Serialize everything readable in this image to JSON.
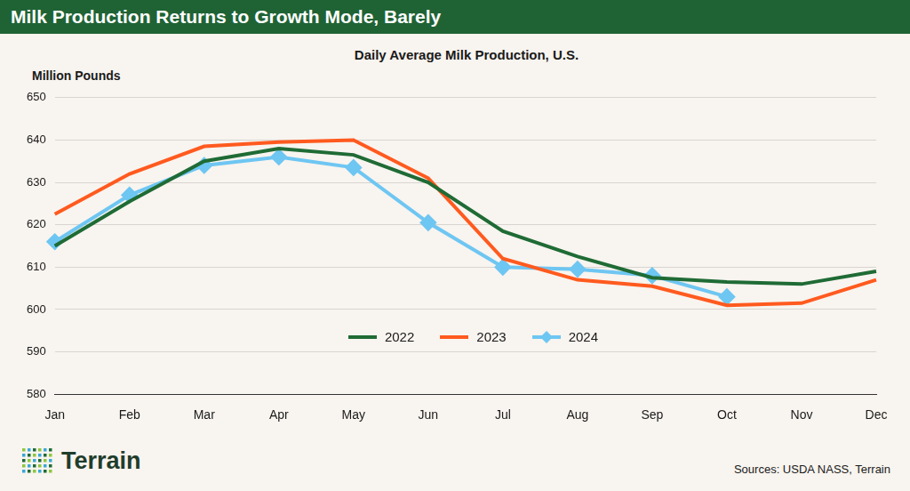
{
  "header": {
    "title": "Milk Production Returns to Growth Mode, Barely"
  },
  "chart_data": {
    "type": "line",
    "title": "Daily Average Milk Production, U.S.",
    "y_label": "Million Pounds",
    "categories": [
      "Jan",
      "Feb",
      "Mar",
      "Apr",
      "May",
      "Jun",
      "Jul",
      "Aug",
      "Sep",
      "Oct",
      "Nov",
      "Dec"
    ],
    "series": [
      {
        "name": "2022",
        "color": "#1f6b35",
        "marker": "none",
        "values": [
          615,
          625.5,
          635,
          638,
          636.5,
          630,
          618.5,
          612.5,
          607.5,
          606.5,
          606,
          609
        ]
      },
      {
        "name": "2023",
        "color": "#ff5a1f",
        "marker": "none",
        "values": [
          622.5,
          632,
          638.5,
          639.5,
          640,
          631,
          612,
          607,
          605.5,
          601,
          601.5,
          607
        ]
      },
      {
        "name": "2024",
        "color": "#6ec6f2",
        "marker": "diamond",
        "values": [
          616,
          627,
          634,
          636,
          633.5,
          620.5,
          610,
          609.5,
          608,
          603,
          null,
          null
        ]
      }
    ],
    "ylim": [
      580,
      650
    ],
    "yticks": [
      580,
      590,
      600,
      610,
      620,
      630,
      640,
      650
    ],
    "grid": true,
    "legend": "bottom"
  },
  "footer": {
    "logo": "Terrain",
    "source": "Sources: USDA NASS, Terrain"
  }
}
